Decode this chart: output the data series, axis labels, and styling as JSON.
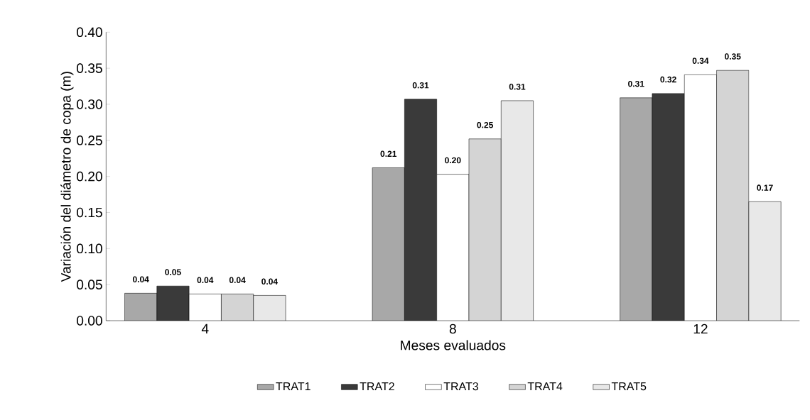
{
  "chart_data": {
    "type": "bar",
    "xlabel": "Meses evaluados",
    "ylabel": "Variación del diámetro de copa (m)",
    "categories": [
      "4",
      "8",
      "12"
    ],
    "ylim": [
      0,
      0.4
    ],
    "yticks": [
      {
        "value": 0,
        "label": "0.00"
      },
      {
        "value": 0.05,
        "label": "0.05"
      },
      {
        "value": 0.1,
        "label": "0.10"
      },
      {
        "value": 0.15,
        "label": "0.15"
      },
      {
        "value": 0.2,
        "label": "0.20"
      },
      {
        "value": 0.25,
        "label": "0.25"
      },
      {
        "value": 0.3,
        "label": "0.30"
      },
      {
        "value": 0.35,
        "label": "0.35"
      },
      {
        "value": 0.4,
        "label": "0.40"
      }
    ],
    "legend": "bottom",
    "series": [
      {
        "name": "TRAT1",
        "color": "#a8a8a8",
        "values": [
          0.038,
          0.212,
          0.309
        ],
        "value_labels": [
          "0.04",
          "0.21",
          "0.31"
        ]
      },
      {
        "name": "TRAT2",
        "color": "#3a3a3a",
        "values": [
          0.048,
          0.307,
          0.315
        ],
        "value_labels": [
          "0.05",
          "0.31",
          "0.32"
        ]
      },
      {
        "name": "TRAT3",
        "color": "#ffffff",
        "values": [
          0.037,
          0.203,
          0.341
        ],
        "value_labels": [
          "0.04",
          "0.20",
          "0.34"
        ]
      },
      {
        "name": "TRAT4",
        "color": "#d4d4d4",
        "values": [
          0.037,
          0.252,
          0.347
        ],
        "value_labels": [
          "0.04",
          "0.25",
          "0.35"
        ]
      },
      {
        "name": "TRAT5",
        "color": "#e8e8e8",
        "values": [
          0.035,
          0.305,
          0.165
        ],
        "value_labels": [
          "0.04",
          "0.31",
          "0.17"
        ]
      }
    ]
  }
}
